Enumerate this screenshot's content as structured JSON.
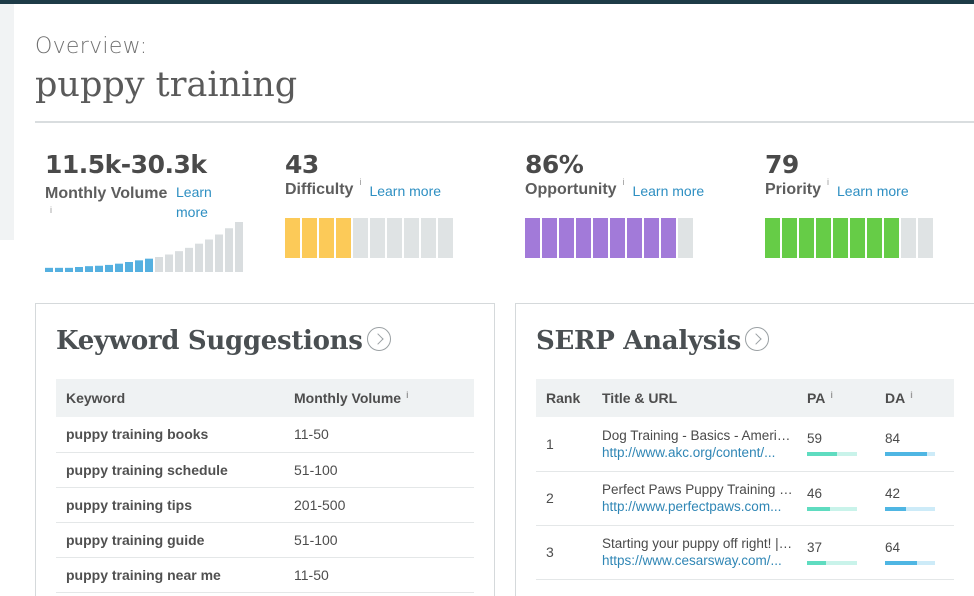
{
  "header": {
    "overview_label": "Overview:",
    "keyword": "puppy training"
  },
  "metrics": {
    "volume": {
      "value": "11.5k-30.3k",
      "label": "Monthly Volume",
      "learn": [
        "Learn",
        "more"
      ],
      "info": "i",
      "history": [
        1,
        1,
        1,
        1.2,
        1.4,
        1.5,
        1.7,
        2,
        2.4,
        2.8,
        3.2,
        3.6,
        4.2,
        5,
        5.8,
        6.8,
        7.8,
        9,
        10.5,
        12
      ]
    },
    "difficulty": {
      "value": "43",
      "label": "Difficulty",
      "learn": "Learn more",
      "info": "i",
      "filled": 4,
      "segments": 10,
      "fill_color": "#fcca58"
    },
    "opportunity": {
      "value": "86%",
      "label": "Opportunity",
      "learn": "Learn more",
      "info": "i",
      "filled": 9,
      "segments": 10,
      "fill_color": "#a27ad9"
    },
    "priority": {
      "value": "79",
      "label": "Priority",
      "learn": "Learn more",
      "info": "i",
      "filled": 8,
      "segments": 10,
      "fill_color": "#66cc47"
    }
  },
  "keyword_suggestions": {
    "title": "Keyword Suggestions",
    "columns": [
      "Keyword",
      "Monthly Volume"
    ],
    "rows": [
      {
        "keyword": "puppy training books",
        "volume": "11-50"
      },
      {
        "keyword": "puppy training schedule",
        "volume": "51-100"
      },
      {
        "keyword": "puppy training tips",
        "volume": "201-500"
      },
      {
        "keyword": "puppy training guide",
        "volume": "51-100"
      },
      {
        "keyword": "puppy training near me",
        "volume": "11-50"
      }
    ]
  },
  "serp_analysis": {
    "title": "SERP Analysis",
    "columns": [
      "Rank",
      "Title & URL",
      "PA",
      "DA"
    ],
    "rows": [
      {
        "rank": "1",
        "title": "Dog Training - Basics - American Kennel Club",
        "url": "http://www.akc.org/content/...",
        "pa": "59",
        "da": "84"
      },
      {
        "rank": "2",
        "title": "Perfect Paws Puppy Training | Dog Training",
        "url": "http://www.perfectpaws.com...",
        "pa": "46",
        "da": "42"
      },
      {
        "rank": "3",
        "title": "Starting your puppy off right! | Cesar's Way",
        "url": "https://www.cesarsway.com/...",
        "pa": "37",
        "da": "64"
      }
    ]
  },
  "colors": {
    "accent_blue": "#2e8fc2",
    "bar_empty": "#dfe3e4",
    "pa_fill": "#5fdcc0",
    "pa_track": "#c9f3ea",
    "da_fill": "#4fb6e3",
    "da_track": "#cdebf8",
    "volume_bar": "#55b0e0",
    "volume_bar_past": "#d9dddf"
  }
}
